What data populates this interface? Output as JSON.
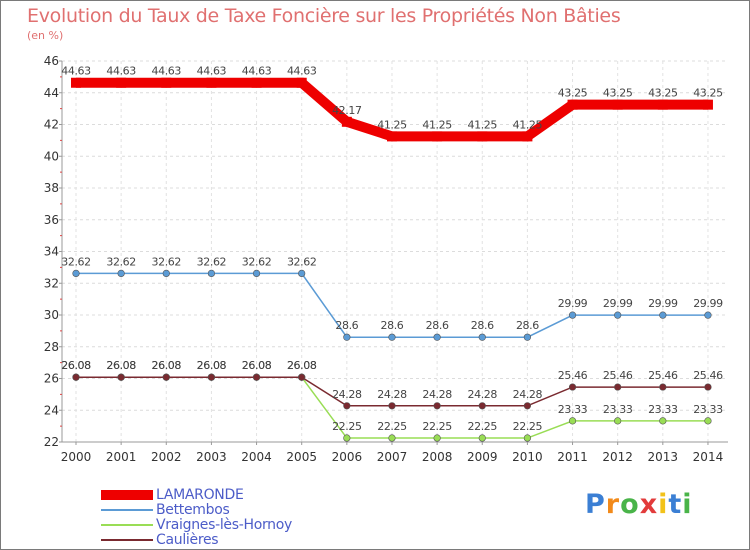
{
  "chart_data": {
    "type": "line",
    "title": "Evolution du Taux de Taxe Foncière sur les Propriétés Non Bâties",
    "ylabel": "(en %)",
    "xlabel": "",
    "ylim": [
      22,
      46
    ],
    "yticks": [
      22,
      24,
      26,
      28,
      30,
      32,
      34,
      36,
      38,
      40,
      42,
      44,
      46
    ],
    "categories": [
      "2000",
      "2001",
      "2002",
      "2003",
      "2004",
      "2005",
      "2006",
      "2007",
      "2008",
      "2009",
      "2010",
      "2011",
      "2012",
      "2013",
      "2014"
    ],
    "grid": true,
    "legend_position": "bottom-left",
    "series": [
      {
        "name": "LAMARONDE",
        "color": "#ee0000",
        "values": [
          44.63,
          44.63,
          44.63,
          44.63,
          44.63,
          44.63,
          42.17,
          41.25,
          41.25,
          41.25,
          41.25,
          43.25,
          43.25,
          43.25,
          43.25
        ],
        "labels": [
          "44.63",
          "44.63",
          "44.63",
          "44.63",
          "44.63",
          "44.63",
          "42.17",
          "41.25",
          "41.25",
          "41.25",
          "41.25",
          "43.25",
          "43.25",
          "43.25",
          "43.25"
        ]
      },
      {
        "name": "Bettembos",
        "color": "#5b9bd5",
        "values": [
          32.62,
          32.62,
          32.62,
          32.62,
          32.62,
          32.62,
          28.6,
          28.6,
          28.6,
          28.6,
          28.6,
          29.99,
          29.99,
          29.99,
          29.99
        ],
        "labels": [
          "32.62",
          "32.62",
          "32.62",
          "32.62",
          "32.62",
          "32.62",
          "28.6",
          "28.6",
          "28.6",
          "28.6",
          "28.6",
          "29.99",
          "29.99",
          "29.99",
          "29.99"
        ]
      },
      {
        "name": "Vraignes-lès-Hornoy",
        "color": "#99dd55",
        "values": [
          26.08,
          26.08,
          26.08,
          26.08,
          26.08,
          26.08,
          22.25,
          22.25,
          22.25,
          22.25,
          22.25,
          23.33,
          23.33,
          23.33,
          23.33
        ],
        "labels": [
          "26.08",
          "26.08",
          "26.08",
          "26.08",
          "26.08",
          "26.08",
          "22.25",
          "22.25",
          "22.25",
          "22.25",
          "22.25",
          "23.33",
          "23.33",
          "23.33",
          "23.33"
        ]
      },
      {
        "name": "Caulières",
        "color": "#7a2a30",
        "values": [
          26.08,
          26.08,
          26.08,
          26.08,
          26.08,
          26.08,
          24.28,
          24.28,
          24.28,
          24.28,
          24.28,
          25.46,
          25.46,
          25.46,
          25.46
        ],
        "labels": [
          "26.08",
          "26.08",
          "26.08",
          "26.08",
          "26.08",
          "26.08",
          "24.28",
          "24.28",
          "24.28",
          "24.28",
          "24.28",
          "25.46",
          "25.46",
          "25.46",
          "25.46"
        ]
      }
    ]
  },
  "logo": {
    "letters": [
      "P",
      "r",
      "o",
      "x",
      "i",
      "t",
      "i"
    ],
    "colors": [
      "#3b7fd4",
      "#f28a1a",
      "#49b449",
      "#e23b3b",
      "#f2c21a",
      "#3b7fd4",
      "#49b449"
    ]
  }
}
